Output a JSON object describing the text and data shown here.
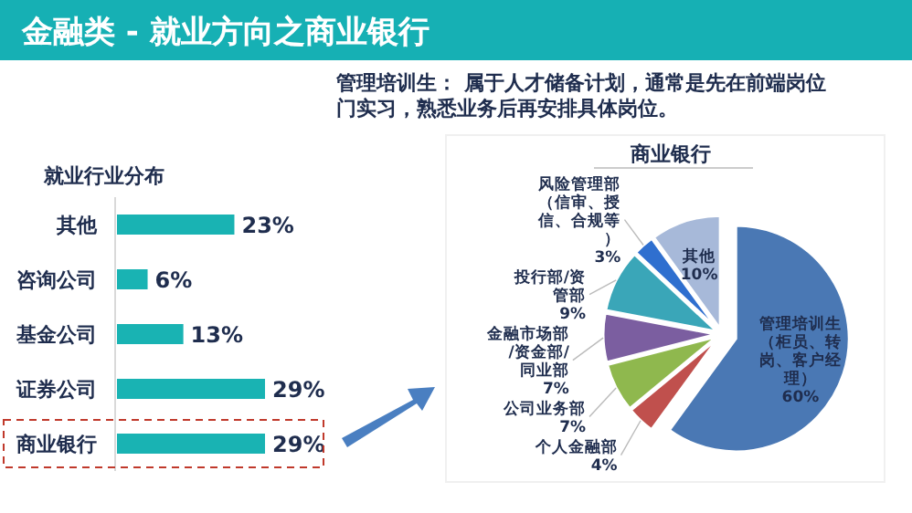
{
  "chart_data": [
    {
      "type": "other",
      "title": "金融类 - 就业方向之商业银行",
      "annotations": [
        "管理培训生： 属于人才储备计划，通常是先在前端岗位门实习，熟悉业务后再安排具体岗位。"
      ]
    },
    {
      "type": "bar",
      "title": "就业行业分布",
      "orientation": "horizontal",
      "categories": [
        "其他",
        "咨询公司",
        "基金公司",
        "证券公司",
        "商业银行"
      ],
      "values": [
        23,
        6,
        13,
        29,
        29
      ],
      "value_labels": [
        "23%",
        "6%",
        "13%",
        "29%",
        "29%"
      ],
      "color": "#19b3b3"
    },
    {
      "type": "pie",
      "title": "商业银行",
      "categories": [
        "管理培训生（柜员、转岗、客户经理）",
        "个人金融部",
        "公司业务部",
        "金融市场部/资金部/同业部",
        "投行部/资管部",
        "风险管理部（信审、授信、合规等）",
        "其他"
      ],
      "values": [
        60,
        4,
        7,
        7,
        9,
        3,
        10
      ],
      "value_labels": [
        "60%",
        "4%",
        "7%",
        "7%",
        "9%",
        "3%",
        "10%"
      ],
      "colors": [
        "#4a78b4",
        "#c0504d",
        "#8fb84e",
        "#7b5ea0",
        "#3aa6b8",
        "#2f6fcf",
        "#a7b9d9"
      ]
    }
  ]
}
